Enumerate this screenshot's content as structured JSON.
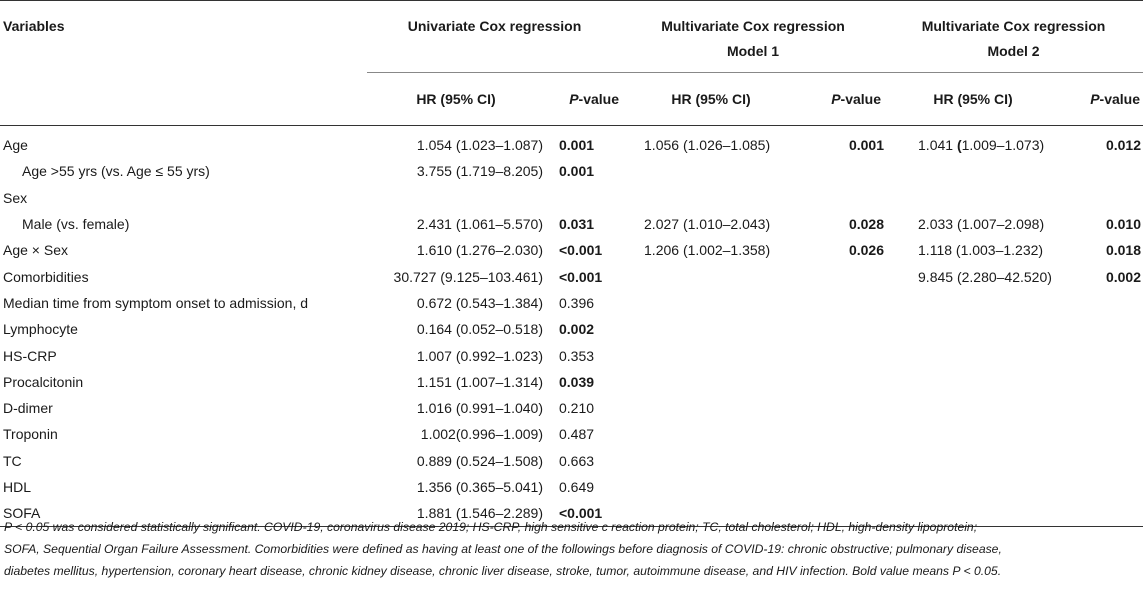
{
  "header": {
    "variables": "Variables",
    "groups": [
      {
        "line1": "Univariate Cox regression",
        "line2": ""
      },
      {
        "line1": "Multivariate Cox regression",
        "line2": "Model 1"
      },
      {
        "line1": "Multivariate Cox regression",
        "line2": "Model 2"
      }
    ],
    "hr_label": "HR (95% CI)",
    "p_label_italic": "P",
    "p_label_rest": "-value"
  },
  "rows": [
    {
      "var": "Age",
      "u_hr": "1.054 (1.023–1.087)",
      "u_p": "0.001",
      "m1_hr": "1.056 (1.026–1.085)",
      "m1_p": "0.001",
      "m2_hr_pre": "1.041 ",
      "m2_hr_bold": "(",
      "m2_hr_post": "1.009–1.073)",
      "m2_p": "0.012"
    },
    {
      "var": "Age >55 yrs (vs. Age ≤ 55 yrs)",
      "u_hr": "3.755 (1.719–8.205)",
      "u_p": "0.001"
    },
    {
      "var": "Sex"
    },
    {
      "var": "Male (vs. female)",
      "u_hr": "2.431 (1.061–5.570)",
      "u_p": "0.031",
      "m1_hr": "2.027 (1.010–2.043)",
      "m1_p": "0.028",
      "m2_hr": "2.033 (1.007–2.098)",
      "m2_p": "0.010"
    },
    {
      "var": "Age × Sex",
      "u_hr": "1.610 (1.276–2.030)",
      "u_p": "<0.001",
      "m1_hr": "1.206 (1.002–1.358)",
      "m1_p": "0.026",
      "m2_hr": "1.118 (1.003–1.232)",
      "m2_p": "0.018"
    },
    {
      "var": "Comorbidities",
      "u_hr": "30.727 (9.125–103.461)",
      "u_p": "<0.001",
      "m2_hr": "9.845 (2.280–42.520)",
      "m2_p": "0.002"
    },
    {
      "var": "Median time from symptom onset to admission, d",
      "u_hr": "0.672 (0.543–1.384)",
      "u_p": "0.396"
    },
    {
      "var": "Lymphocyte",
      "u_hr": "0.164 (0.052–0.518)",
      "u_p": "0.002"
    },
    {
      "var": "HS-CRP",
      "u_hr": "1.007 (0.992–1.023)",
      "u_p": "0.353"
    },
    {
      "var": "Procalcitonin",
      "u_hr": "1.151 (1.007–1.314)",
      "u_p": "0.039"
    },
    {
      "var": "D-dimer",
      "u_hr": "1.016 (0.991–1.040)",
      "u_p": "0.210"
    },
    {
      "var": "Troponin",
      "u_hr": "1.002(0.996–1.009)",
      "u_p": "0.487"
    },
    {
      "var": "TC",
      "u_hr": "0.889 (0.524–1.508)",
      "u_p": "0.663"
    },
    {
      "var": "HDL",
      "u_hr": "1.356 (0.365–5.041)",
      "u_p": "0.649"
    },
    {
      "var": "SOFA",
      "u_hr": "1.881 (1.546–2.289)",
      "u_p": "<0.001"
    }
  ],
  "footnote": {
    "line1": "P < 0.05 was considered statistically significant. COVID-19, coronavirus disease 2019; HS-CRP, high sensitive c reaction protein; TC, total cholesterol; HDL, high-density lipoprotein;",
    "line2": "SOFA, Sequential Organ Failure Assessment. Comorbidities were defined as having at least one of the followings before diagnosis of COVID-19: chronic obstructive; pulmonary disease,",
    "line3": "diabetes mellitus, hypertension, coronary heart disease, chronic kidney disease, chronic liver disease, stroke, tumor, autoimmune disease, and HIV infection. Bold value means P < 0.05."
  }
}
